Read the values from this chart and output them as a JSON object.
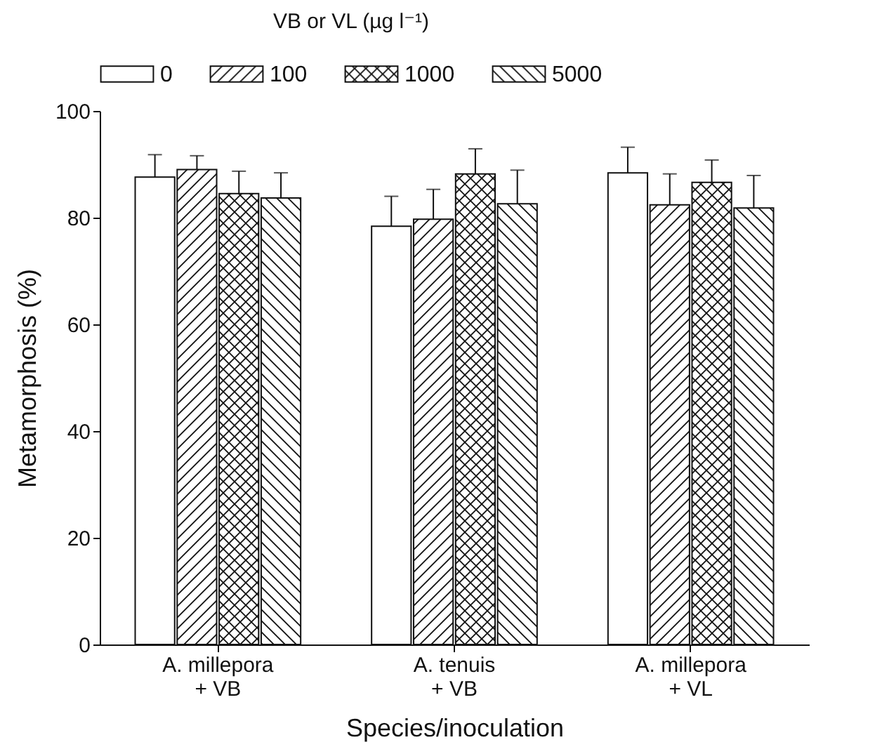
{
  "chart_data": {
    "type": "bar",
    "xlabel": "Species/inoculation",
    "ylabel": "Metamorphosis (%)",
    "legend_title": "VB or VL (µg l⁻¹)",
    "legend": "top",
    "categories": [
      "A. millepora\n+ VB",
      "A. tenuis\n+ VB",
      "A. millepora\n+ VL"
    ],
    "ylim": [
      0,
      100
    ],
    "yticks": [
      0,
      20,
      40,
      60,
      80,
      100
    ],
    "grid": false,
    "series": [
      {
        "name": "0",
        "color": "#111111",
        "values": [
          87.6,
          78.4,
          88.4
        ],
        "errors": [
          [
            87.6,
            91.8
          ],
          [
            78.4,
            84
          ],
          [
            88.4,
            93.2
          ]
        ]
      },
      {
        "name": "100",
        "color": "#111111",
        "values": [
          89,
          79.7,
          82.4
        ],
        "errors": [
          [
            89,
            91.6
          ],
          [
            79.7,
            85.3
          ],
          [
            82.4,
            88.2
          ]
        ]
      },
      {
        "name": "1000",
        "color": "#111111",
        "values": [
          84.5,
          88.2,
          86.6
        ],
        "errors": [
          [
            84.5,
            88.7
          ],
          [
            88.2,
            92.9
          ],
          [
            86.6,
            90.8
          ]
        ]
      },
      {
        "name": "5000",
        "color": "#111111",
        "values": [
          83.7,
          82.6,
          81.8
        ],
        "errors": [
          [
            83.7,
            88.4
          ],
          [
            82.6,
            88.9
          ],
          [
            81.8,
            87.9
          ]
        ]
      }
    ]
  }
}
